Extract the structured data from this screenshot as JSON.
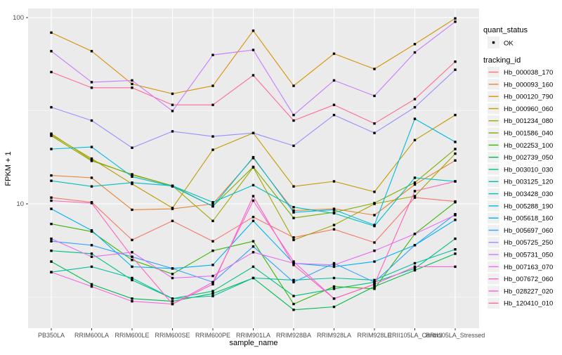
{
  "figure": {
    "y_axis": {
      "label": "FPKM + 1",
      "tick_labels": [
        "100",
        "10"
      ],
      "tick_values": [
        100,
        10
      ]
    },
    "x_axis": {
      "label": "sample_name"
    },
    "legend": {
      "quant_status": {
        "title": "quant_status",
        "items": [
          {
            "label": "OK",
            "marker": "black-point"
          }
        ]
      },
      "tracking_id": {
        "title": "tracking_id"
      }
    }
  },
  "colors": {
    "panel_bg": "#EBEBEB",
    "grid_major": "#FFFFFF",
    "grid_minor": "#FFFFFF",
    "tick_text": "#4D4D4D",
    "title_text": "#000000",
    "marker": "#000000",
    "legend_key_bg": "#F0F0F0",
    "tick_mark": "#333333"
  },
  "chart_data": {
    "type": "line",
    "title": "",
    "xlabel": "sample_name",
    "ylabel": "FPKM + 1",
    "y_scale": "log10",
    "ylim": [
      2.1,
      112
    ],
    "grid": true,
    "legend_position": "right",
    "point_marker": "small black square on every data point (quant_status = OK)",
    "minor_gridline_values": [
      3.1623,
      31.623
    ],
    "major_gridline_values": [
      10,
      100
    ],
    "categories": [
      "PB350LA",
      "RRIM600LA",
      "RRIM600LE",
      "RRIM600SE",
      "RRIM600PE",
      "RRIM901LA",
      "RRIM928BA",
      "RRIM928LA",
      "RRIM928LE",
      "RRII105LA_Control",
      "RRII105LA_Stressed"
    ],
    "series": [
      {
        "name": "Hb_000038_170",
        "color": "#F8766D",
        "values": [
          10.8,
          10.2,
          6.4,
          8.1,
          6.3,
          8.5,
          6.6,
          7.3,
          6.2,
          10.8,
          10.3
        ]
      },
      {
        "name": "Hb_000093_160",
        "color": "#EA8331",
        "values": [
          14.2,
          13.8,
          9.3,
          9.4,
          10.0,
          17.6,
          9.2,
          9.4,
          8.7,
          12.7,
          17.1
        ]
      },
      {
        "name": "Hb_000120_790",
        "color": "#D89000",
        "values": [
          83,
          66,
          44,
          39,
          43,
          85,
          43,
          64,
          53,
          72,
          99
        ]
      },
      {
        "name": "Hb_000960_060",
        "color": "#C09B00",
        "values": [
          23.5,
          17.5,
          12.8,
          9.5,
          19.5,
          24,
          12.4,
          13.2,
          11.6,
          22,
          30
        ]
      },
      {
        "name": "Hb_001234_080",
        "color": "#A3A500",
        "values": [
          23.8,
          17.2,
          14.3,
          12.5,
          8.1,
          15.7,
          6.4,
          7.7,
          10.0,
          11.0,
          18.6
        ]
      },
      {
        "name": "Hb_001586_040",
        "color": "#7CAE00",
        "values": [
          23.2,
          17.0,
          14.4,
          12.5,
          9.7,
          15.8,
          8.4,
          9.0,
          10.1,
          13.0,
          19.7
        ]
      },
      {
        "name": "Hb_002253_100",
        "color": "#39B600",
        "values": [
          7.8,
          7.1,
          5.0,
          4.2,
          5.6,
          6.3,
          2.9,
          3.6,
          3.5,
          6.9,
          10.2
        ]
      },
      {
        "name": "Hb_002739_050",
        "color": "#00BB4E",
        "values": [
          4.9,
          3.7,
          3.1,
          3.0,
          3.3,
          4.0,
          2.7,
          2.8,
          3.6,
          4.4,
          5.4
        ]
      },
      {
        "name": "Hb_003010_030",
        "color": "#00BF7D",
        "values": [
          5.6,
          5.4,
          3.9,
          3.1,
          3.4,
          4.6,
          3.2,
          3.5,
          3.8,
          4.5,
          6.5
        ]
      },
      {
        "name": "Hb_003125_120",
        "color": "#00C1A3",
        "values": [
          4.3,
          4.6,
          4.0,
          3.1,
          3.2,
          4.0,
          3.9,
          4.0,
          3.9,
          4.8,
          5.7
        ]
      },
      {
        "name": "Hb_003428_030",
        "color": "#00BFC4",
        "values": [
          13.3,
          12.4,
          13.0,
          12.5,
          10.2,
          12.6,
          9.6,
          8.9,
          7.6,
          13.8,
          13.2
        ]
      },
      {
        "name": "Hb_005288_190",
        "color": "#00BAE0",
        "values": [
          19.7,
          20.2,
          14.0,
          12.4,
          9.7,
          17.8,
          9.0,
          9.3,
          7.7,
          28.6,
          21.5
        ]
      },
      {
        "name": "Hb_005618_160",
        "color": "#00B0F6",
        "values": [
          9.4,
          7.2,
          4.6,
          4.5,
          4.7,
          8.1,
          4.8,
          4.6,
          4.9,
          6.0,
          8.2
        ]
      },
      {
        "name": "Hb_005697_060",
        "color": "#35A2FF",
        "values": [
          6.3,
          6.0,
          5.2,
          4.5,
          3.8,
          5.9,
          3.8,
          4.8,
          3.8,
          6.0,
          8.8
        ]
      },
      {
        "name": "Hb_005725_250",
        "color": "#9590FF",
        "values": [
          33,
          28,
          20,
          24.5,
          23,
          24,
          20.5,
          30,
          24,
          33,
          52.5
        ]
      },
      {
        "name": "Hb_005731_050",
        "color": "#C77CFF",
        "values": [
          66,
          45,
          46,
          31.5,
          63,
          67,
          30,
          46,
          38,
          65,
          95
        ]
      },
      {
        "name": "Hb_007163_070",
        "color": "#E76BF3",
        "values": [
          6.5,
          5.2,
          5.5,
          4.0,
          4.1,
          5.5,
          4.8,
          4.7,
          5.6,
          6.9,
          8.7
        ]
      },
      {
        "name": "Hb_007672_060",
        "color": "#FA62DB",
        "values": [
          4.3,
          3.6,
          3.0,
          2.9,
          3.8,
          10.4,
          4.9,
          3.1,
          3.7,
          4.6,
          4.6
        ]
      },
      {
        "name": "Hb_028227_020",
        "color": "#FF62BC",
        "values": [
          10.4,
          10.1,
          5.2,
          2.9,
          3.7,
          11.0,
          4.7,
          3.1,
          3.7,
          11.7,
          13.2
        ]
      },
      {
        "name": "Hb_120410_010",
        "color": "#FF6A98",
        "values": [
          51,
          42,
          42,
          34,
          34,
          49,
          28,
          34,
          27,
          36.5,
          58
        ]
      }
    ]
  }
}
